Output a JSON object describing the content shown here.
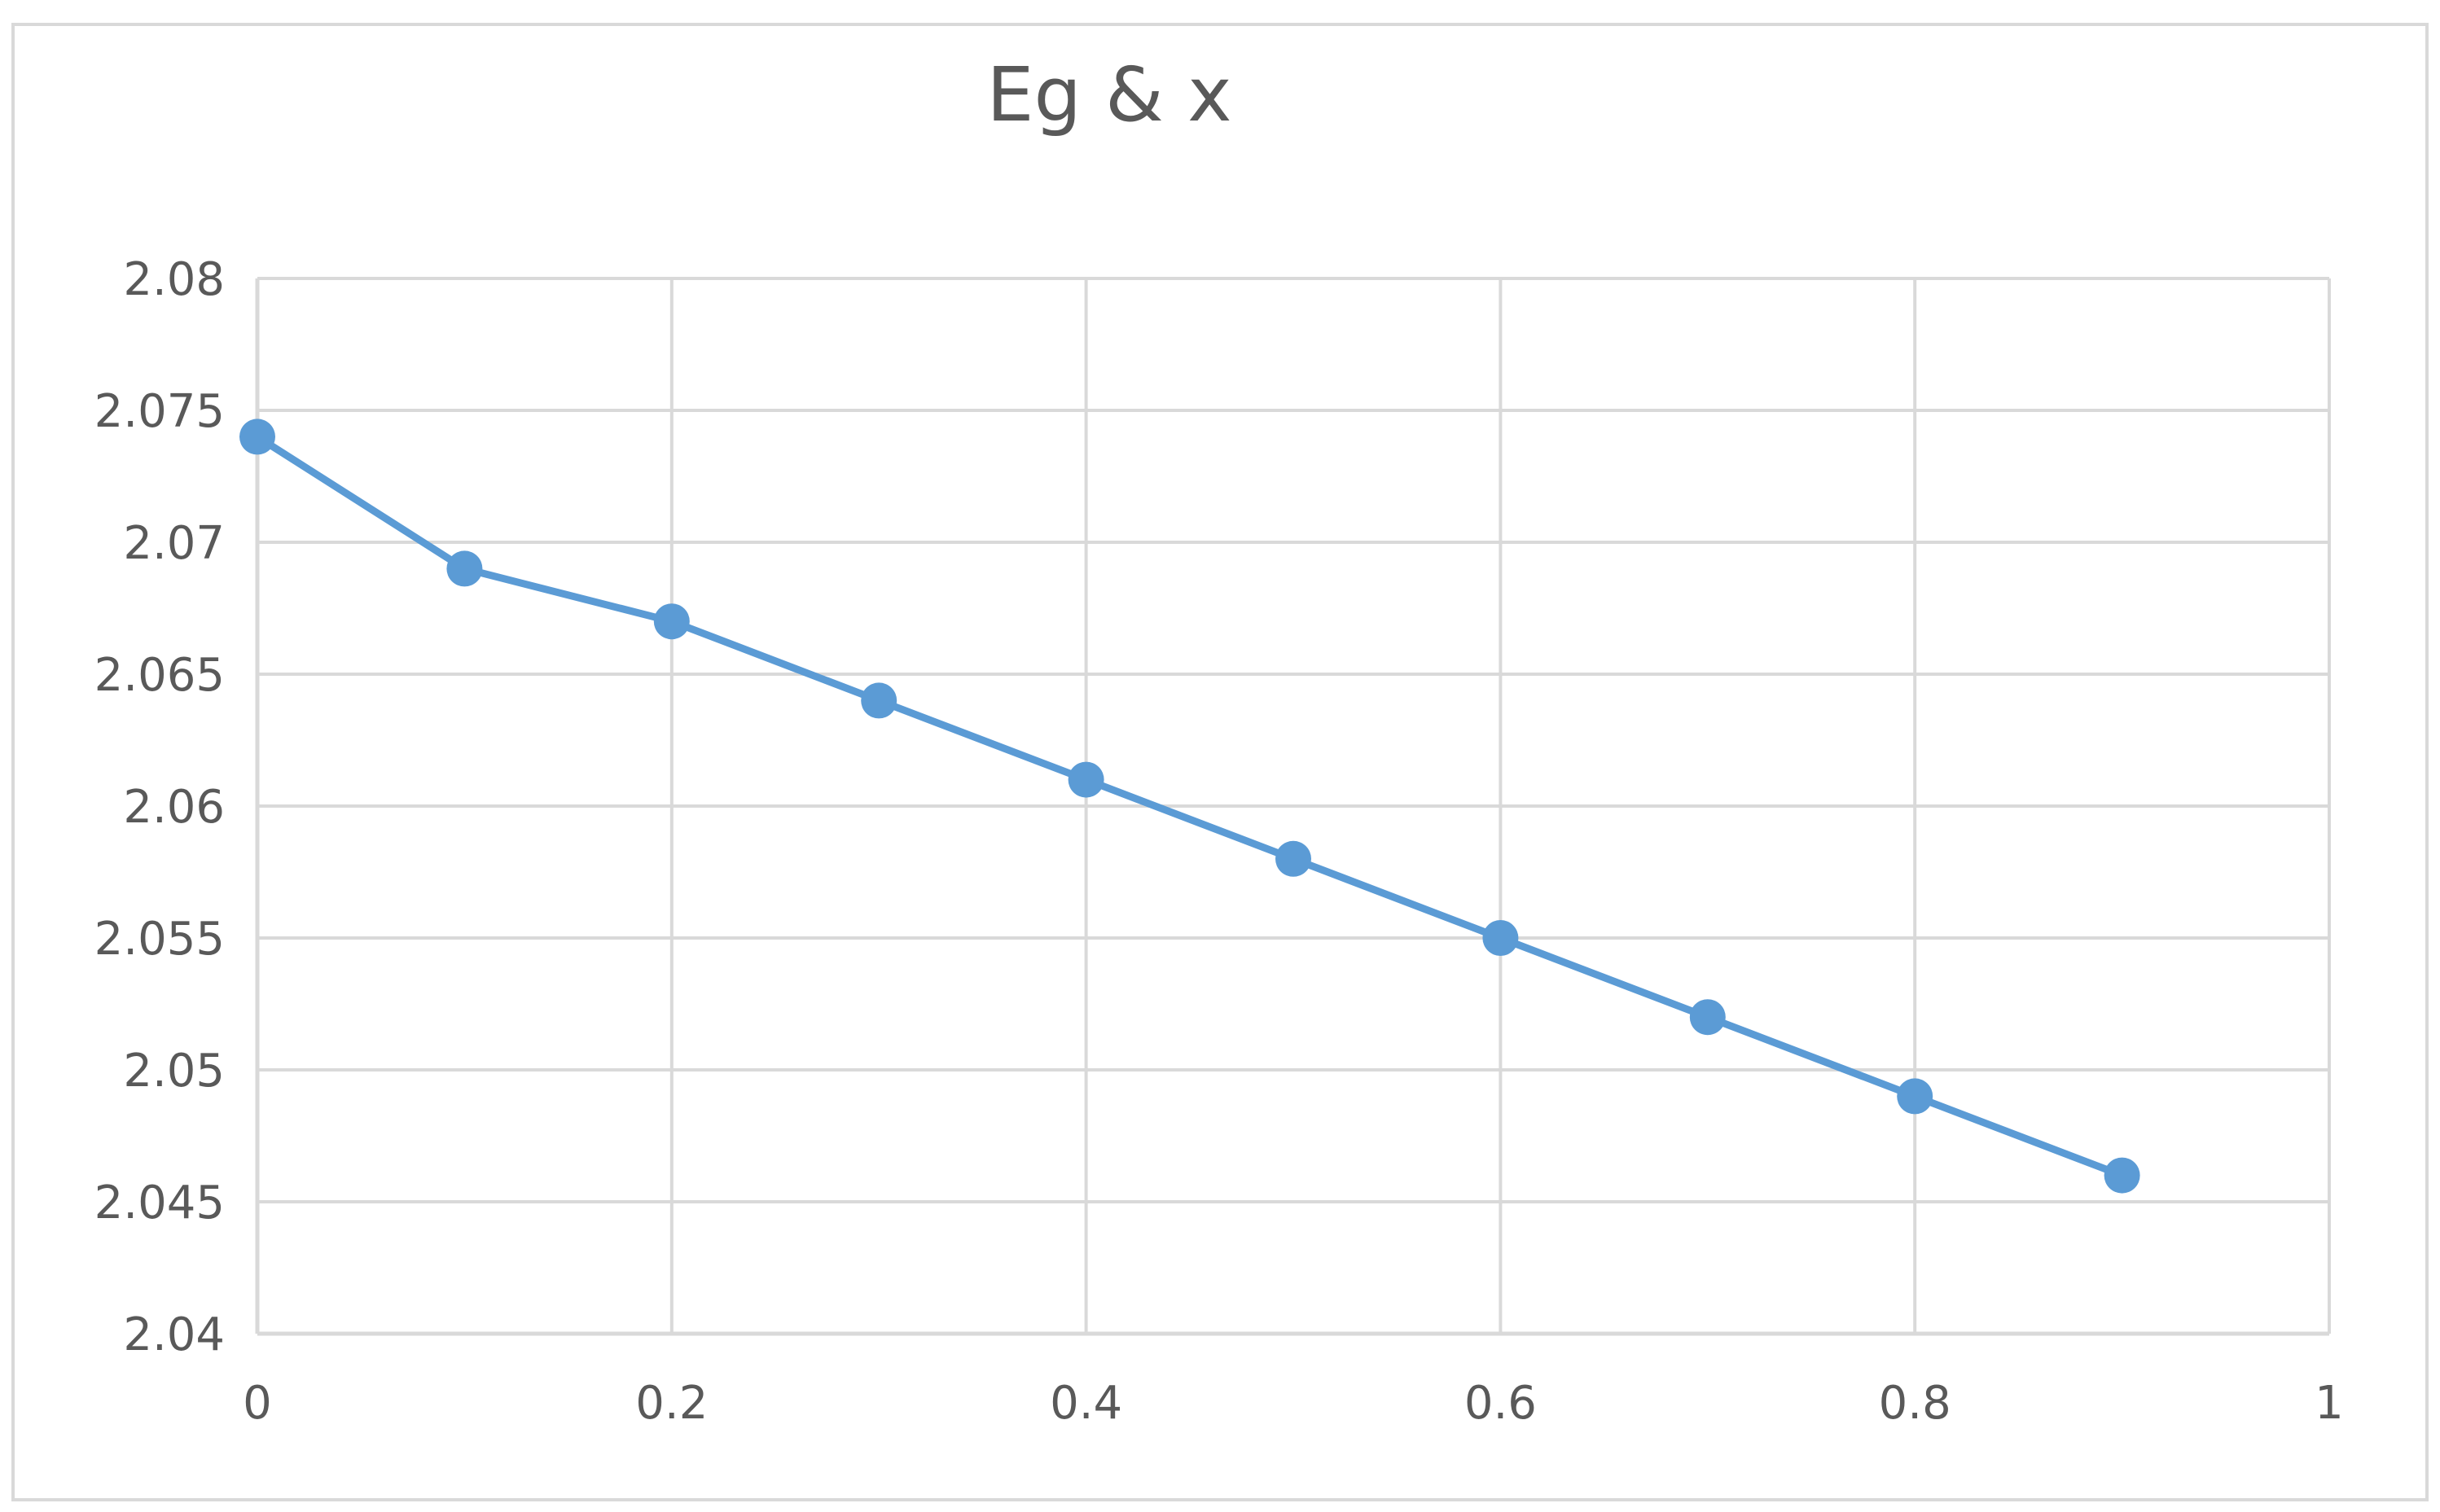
{
  "chart_data": {
    "type": "line",
    "title": "Eg & x",
    "xlabel": "",
    "ylabel": "",
    "xlim": [
      0,
      1
    ],
    "ylim": [
      2.04,
      2.08
    ],
    "x_ticks": [
      0,
      0.2,
      0.4,
      0.6,
      0.8,
      1
    ],
    "x_tick_labels": [
      "0",
      "0.2",
      "0.4",
      "0.6",
      "0.8",
      "1"
    ],
    "y_ticks": [
      2.04,
      2.045,
      2.05,
      2.055,
      2.06,
      2.065,
      2.07,
      2.075,
      2.08
    ],
    "y_tick_labels": [
      "2.04",
      "2.045",
      "2.05",
      "2.055",
      "2.06",
      "2.065",
      "2.07",
      "2.075",
      "2.08"
    ],
    "grid": true,
    "legend": "none",
    "series": [
      {
        "x": [
          0,
          0.1,
          0.2,
          0.3,
          0.4,
          0.5,
          0.6,
          0.7,
          0.8,
          0.9
        ],
        "values": [
          2.074,
          2.069,
          2.067,
          2.064,
          2.061,
          2.058,
          2.055,
          2.052,
          2.049,
          2.046
        ],
        "color": "#5b9bd5",
        "marker": "circle"
      }
    ]
  },
  "colors": {
    "line": "#5b9bd5",
    "grid": "#d9d9d9",
    "axis": "#d9d9d9",
    "text": "#595959",
    "frame": "#d9d9d9"
  }
}
